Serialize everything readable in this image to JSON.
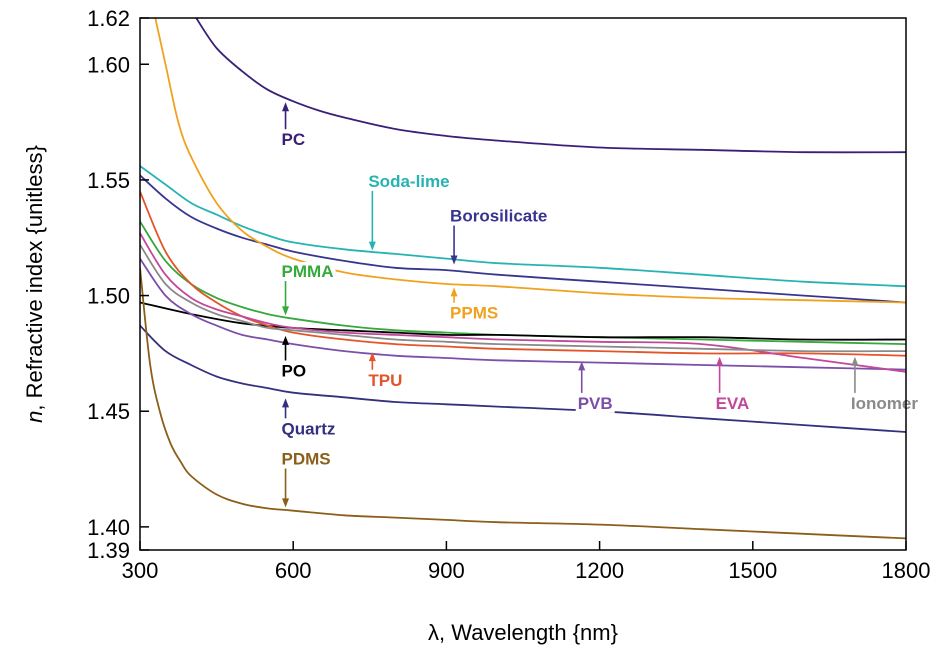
{
  "chart_data": {
    "type": "line",
    "xlabel": "λ, Wavelength {nm}",
    "ylabel_prefix": "n",
    "ylabel_rest": ", Refractive index {unitless}",
    "xlim": [
      300,
      1800
    ],
    "ylim": [
      1.39,
      1.62
    ],
    "xticks": [
      300,
      600,
      900,
      1200,
      1500,
      1800
    ],
    "xtick_labels": [
      "300",
      "600",
      "900",
      "1200",
      "1500",
      "1800"
    ],
    "yticks": [
      1.39,
      1.4,
      1.45,
      1.5,
      1.55,
      1.6,
      1.62
    ],
    "ytick_labels": [
      "1.39",
      "1.40",
      "1.45",
      "1.50",
      "1.55",
      "1.60",
      "1.62"
    ],
    "grid": false,
    "series": [
      {
        "name": "PC",
        "color": "#3a1f78",
        "x": [
          410,
          450,
          500,
          550,
          600,
          650,
          700,
          800,
          900,
          1000,
          1200,
          1400,
          1600,
          1800
        ],
        "y": [
          1.62,
          1.607,
          1.597,
          1.589,
          1.584,
          1.58,
          1.577,
          1.572,
          1.569,
          1.567,
          1.564,
          1.563,
          1.562,
          1.562
        ],
        "label_at": [
          585,
          1.565
        ],
        "arrow_to": [
          585,
          1.584
        ]
      },
      {
        "name": "Soda-lime",
        "color": "#27b3b3",
        "x": [
          300,
          350,
          400,
          450,
          500,
          550,
          600,
          700,
          800,
          900,
          1000,
          1200,
          1400,
          1600,
          1800
        ],
        "y": [
          1.556,
          1.548,
          1.54,
          1.535,
          1.53,
          1.526,
          1.523,
          1.52,
          1.518,
          1.516,
          1.514,
          1.512,
          1.509,
          1.506,
          1.504
        ],
        "label_at": [
          755,
          1.547
        ],
        "arrow_to": [
          755,
          1.519
        ]
      },
      {
        "name": "Borosilicate",
        "color": "#38358f",
        "x": [
          300,
          350,
          400,
          450,
          500,
          550,
          600,
          700,
          800,
          900,
          1000,
          1200,
          1400,
          1600,
          1800
        ],
        "y": [
          1.552,
          1.542,
          1.534,
          1.529,
          1.525,
          1.522,
          1.519,
          1.515,
          1.512,
          1.511,
          1.509,
          1.506,
          1.503,
          1.5,
          1.497
        ],
        "label_at": [
          915,
          1.532
        ],
        "arrow_to": [
          915,
          1.513
        ]
      },
      {
        "name": "PPMS",
        "color": "#f0a21e",
        "x": [
          330,
          350,
          375,
          400,
          450,
          500,
          550,
          600,
          700,
          800,
          900,
          1000,
          1200,
          1400,
          1600,
          1800
        ],
        "y": [
          1.62,
          1.6,
          1.575,
          1.56,
          1.54,
          1.528,
          1.521,
          1.516,
          1.51,
          1.507,
          1.505,
          1.504,
          1.501,
          1.499,
          1.498,
          1.497
        ],
        "label_at": [
          915,
          1.49
        ],
        "arrow_to": [
          915,
          1.504
        ]
      },
      {
        "name": "PMMA",
        "color": "#36a83c",
        "x": [
          300,
          350,
          400,
          450,
          500,
          550,
          600,
          700,
          800,
          900,
          1000,
          1200,
          1400,
          1600,
          1800
        ],
        "y": [
          1.532,
          1.515,
          1.505,
          1.499,
          1.495,
          1.492,
          1.49,
          1.487,
          1.485,
          1.484,
          1.483,
          1.482,
          1.481,
          1.48,
          1.479
        ],
        "label_at": [
          585,
          1.508
        ],
        "arrow_to": [
          585,
          1.491
        ]
      },
      {
        "name": "PO",
        "color": "#000000",
        "x": [
          300,
          400,
          500,
          600,
          700,
          800,
          900,
          1000,
          1200,
          1400,
          1600,
          1800
        ],
        "y": [
          1.497,
          1.492,
          1.488,
          1.486,
          1.485,
          1.484,
          1.483,
          1.483,
          1.482,
          1.482,
          1.481,
          1.481
        ],
        "label_at": [
          585,
          1.465
        ],
        "arrow_to": [
          585,
          1.483
        ]
      },
      {
        "name": "TPU",
        "color": "#e4542a",
        "x": [
          300,
          350,
          400,
          450,
          500,
          550,
          600,
          700,
          800,
          900,
          1000,
          1200,
          1400,
          1600,
          1800
        ],
        "y": [
          1.545,
          1.519,
          1.505,
          1.497,
          1.491,
          1.487,
          1.484,
          1.481,
          1.479,
          1.478,
          1.477,
          1.476,
          1.475,
          1.475,
          1.474
        ],
        "label_at": [
          755,
          1.461
        ],
        "arrow_to": [
          755,
          1.476
        ]
      },
      {
        "name": "PVB",
        "color": "#7c4fa8",
        "x": [
          300,
          350,
          400,
          450,
          500,
          550,
          600,
          700,
          800,
          900,
          1000,
          1200,
          1400,
          1600,
          1800
        ],
        "y": [
          1.516,
          1.5,
          1.492,
          1.487,
          1.483,
          1.481,
          1.479,
          1.476,
          1.474,
          1.473,
          1.472,
          1.471,
          1.47,
          1.469,
          1.468
        ],
        "label_at": [
          1165,
          1.451
        ],
        "arrow_to": [
          1165,
          1.472
        ]
      },
      {
        "name": "EVA",
        "color": "#c2489a",
        "x": [
          300,
          350,
          400,
          450,
          500,
          550,
          600,
          700,
          800,
          900,
          1000,
          1200,
          1400,
          1600,
          1800
        ],
        "y": [
          1.527,
          1.509,
          1.499,
          1.494,
          1.491,
          1.488,
          1.486,
          1.484,
          1.483,
          1.482,
          1.481,
          1.48,
          1.479,
          1.473,
          1.467
        ],
        "label_at": [
          1435,
          1.451
        ],
        "arrow_to": [
          1435,
          1.474
        ]
      },
      {
        "name": "Ionomer",
        "color": "#8a8a8a",
        "x": [
          300,
          350,
          400,
          450,
          500,
          550,
          600,
          700,
          800,
          900,
          1000,
          1200,
          1400,
          1600,
          1800
        ],
        "y": [
          1.522,
          1.505,
          1.497,
          1.492,
          1.489,
          1.486,
          1.485,
          1.483,
          1.481,
          1.48,
          1.479,
          1.478,
          1.477,
          1.476,
          1.476
        ],
        "label_at": [
          1700,
          1.451
        ],
        "arrow_to": [
          1700,
          1.474
        ]
      },
      {
        "name": "Quartz",
        "color": "#33307e",
        "x": [
          300,
          350,
          400,
          450,
          500,
          550,
          600,
          700,
          800,
          900,
          1000,
          1200,
          1400,
          1600,
          1800
        ],
        "y": [
          1.487,
          1.476,
          1.47,
          1.465,
          1.462,
          1.46,
          1.458,
          1.456,
          1.454,
          1.453,
          1.452,
          1.45,
          1.447,
          1.444,
          1.441
        ],
        "label_at": [
          585,
          1.44
        ],
        "arrow_to": [
          585,
          1.456
        ]
      },
      {
        "name": "PDMS",
        "color": "#8b5e1a",
        "x": [
          300,
          320,
          340,
          360,
          380,
          400,
          450,
          500,
          550,
          600,
          700,
          800,
          900,
          1000,
          1200,
          1400,
          1600,
          1800
        ],
        "y": [
          1.512,
          1.47,
          1.449,
          1.436,
          1.428,
          1.422,
          1.414,
          1.41,
          1.408,
          1.407,
          1.405,
          1.404,
          1.403,
          1.402,
          1.401,
          1.399,
          1.397,
          1.395
        ],
        "label_at": [
          585,
          1.427
        ],
        "arrow_to": [
          585,
          1.408
        ]
      }
    ]
  }
}
